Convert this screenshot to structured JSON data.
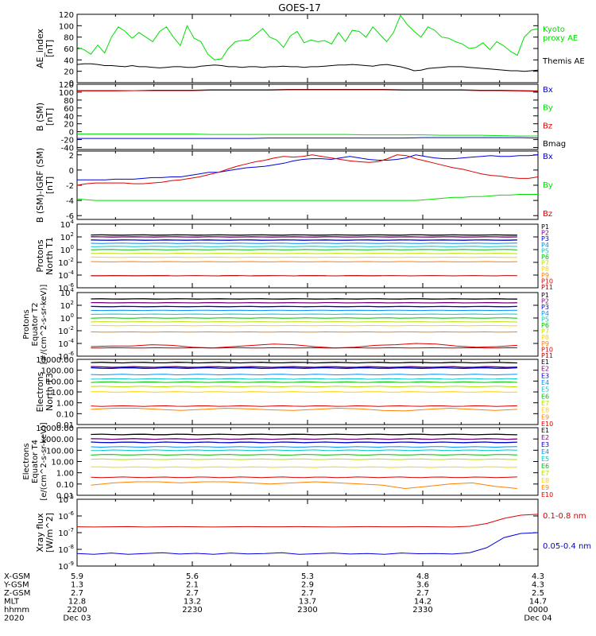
{
  "title": "GOES-17",
  "colors": {
    "axis": "#000000",
    "black": "#000000",
    "green": "#00e000",
    "blue": "#0000dd",
    "red": "#dd0000",
    "p_channels": [
      "#000000",
      "#7a007a",
      "#0000cc",
      "#0090ff",
      "#00c8c8",
      "#00c000",
      "#b8e000",
      "#ffd000",
      "#ff8000",
      "#dd0000",
      "#b00000"
    ],
    "e_channels": [
      "#000000",
      "#7a007a",
      "#0000cc",
      "#0090ff",
      "#00c8c8",
      "#00c000",
      "#b8e000",
      "#ffd000",
      "#ff8000",
      "#dd0000"
    ]
  },
  "chart_data": [
    {
      "id": "ae",
      "type": "line",
      "ylabel": "AE_index\n[nT]",
      "ylim": [
        0,
        120
      ],
      "ticks": [
        "0",
        "20",
        "40",
        "60",
        "80",
        "100",
        "120"
      ],
      "tick_values": [
        0,
        20,
        40,
        60,
        80,
        100,
        120
      ],
      "legend": [
        {
          "label": "Kyoto\nproxy AE",
          "color": "green"
        },
        {
          "label": "Themis AE",
          "color": "black"
        }
      ],
      "series": [
        {
          "name": "Kyoto proxy AE",
          "color": "green",
          "values": [
            62,
            58,
            50,
            66,
            52,
            80,
            98,
            90,
            78,
            88,
            80,
            72,
            90,
            98,
            80,
            65,
            100,
            78,
            72,
            50,
            40,
            42,
            60,
            72,
            74,
            75,
            85,
            95,
            80,
            75,
            62,
            82,
            90,
            70,
            75,
            72,
            74,
            68,
            88,
            72,
            92,
            90,
            80,
            98,
            85,
            72,
            88,
            118,
            102,
            90,
            80,
            98,
            92,
            80,
            78,
            72,
            68,
            60,
            62,
            70,
            58,
            72,
            65,
            55,
            48,
            80,
            92,
            95
          ]
        },
        {
          "name": "Themis AE",
          "color": "black",
          "values": [
            32,
            33,
            33,
            32,
            30,
            30,
            29,
            28,
            30,
            28,
            28,
            27,
            26,
            27,
            28,
            28,
            27,
            27,
            29,
            30,
            31,
            30,
            28,
            28,
            27,
            28,
            28,
            27,
            28,
            28,
            29,
            28,
            28,
            27,
            28,
            28,
            29,
            30,
            31,
            31,
            32,
            31,
            30,
            29,
            31,
            32,
            30,
            28,
            25,
            21,
            22,
            25,
            26,
            27,
            28,
            28,
            28,
            27,
            26,
            25,
            24,
            23,
            22,
            21,
            21,
            20,
            21,
            22
          ]
        }
      ]
    },
    {
      "id": "bsm",
      "type": "line",
      "ylabel": "B (SM)\n[nT]",
      "ylim": [
        -45,
        120
      ],
      "ticks": [
        "-40",
        "-20",
        "0",
        "20",
        "40",
        "60",
        "80",
        "100",
        "120"
      ],
      "tick_values": [
        -40,
        -20,
        0,
        20,
        40,
        60,
        80,
        100,
        120
      ],
      "legend": [
        {
          "label": "Bx",
          "color": "blue"
        },
        {
          "label": "By",
          "color": "green"
        },
        {
          "label": "Bz",
          "color": "red"
        },
        {
          "label": "Bmag",
          "color": "black"
        }
      ],
      "series": [
        {
          "name": "Bx",
          "color": "blue",
          "values": [
            -17,
            -17,
            -17,
            -17,
            -17,
            -17,
            -17,
            -17,
            -17,
            -17,
            -16,
            -16,
            -16,
            -16,
            -16,
            -16,
            -16,
            -16,
            -15,
            -15,
            -15,
            -15,
            -15,
            -15,
            -16
          ]
        },
        {
          "name": "By",
          "color": "green",
          "values": [
            -6,
            -6,
            -6,
            -6,
            -6,
            -6,
            -6,
            -7,
            -7,
            -7,
            -7,
            -7,
            -7,
            -7,
            -7,
            -8,
            -8,
            -8,
            -8,
            -9,
            -9,
            -9,
            -10,
            -11,
            -11
          ]
        },
        {
          "name": "Bmag",
          "color": "black",
          "values": [
            104,
            104,
            104,
            104,
            105,
            105,
            105,
            106,
            106,
            106,
            106,
            107,
            107,
            107,
            107,
            107,
            107,
            106,
            106,
            106,
            106,
            105,
            105,
            104,
            103
          ]
        },
        {
          "name": "Bz",
          "color": "red",
          "values": [
            103,
            103,
            103,
            104,
            104,
            104,
            104,
            105,
            105,
            105,
            105,
            106,
            106,
            106,
            106,
            106,
            106,
            105,
            105,
            105,
            105,
            104,
            104,
            103,
            102
          ]
        }
      ]
    },
    {
      "id": "bdiff",
      "type": "line",
      "ylabel": "B (SM)-IGRF (SM)\n[nT]",
      "ylim": [
        -6.5,
        2.5
      ],
      "ticks": [
        "-6",
        "-4",
        "-2",
        "0",
        "2"
      ],
      "tick_values": [
        -6,
        -4,
        -2,
        0,
        2
      ],
      "legend": [
        {
          "label": "Bx",
          "color": "blue"
        },
        {
          "label": "By",
          "color": "green"
        },
        {
          "label": "Bz",
          "color": "red"
        }
      ],
      "series": [
        {
          "name": "Bx",
          "color": "blue",
          "values": [
            -1.3,
            -1.3,
            -1.3,
            -1.3,
            -1.2,
            -1.2,
            -1.2,
            -1.1,
            -1.0,
            -1.0,
            -0.9,
            -0.9,
            -0.7,
            -0.5,
            -0.3,
            -0.3,
            -0.1,
            0.1,
            0.3,
            0.4,
            0.5,
            0.7,
            0.9,
            1.2,
            1.4,
            1.5,
            1.5,
            1.4,
            1.6,
            1.8,
            1.6,
            1.4,
            1.3,
            1.3,
            1.4,
            1.6,
            2.0,
            1.8,
            1.6,
            1.5,
            1.5,
            1.6,
            1.7,
            1.8,
            1.9,
            1.8,
            1.8,
            1.9,
            1.9,
            2.0
          ]
        },
        {
          "name": "By",
          "color": "green",
          "values": [
            -3.8,
            -3.9,
            -4.0,
            -4.0,
            -4.0,
            -4.0,
            -4.0,
            -4.0,
            -4.0,
            -4.0,
            -4.0,
            -4.0,
            -4.0,
            -4.0,
            -4.0,
            -4.0,
            -4.0,
            -4.0,
            -4.0,
            -4.0,
            -4.0,
            -4.0,
            -4.0,
            -4.0,
            -4.0,
            -4.0,
            -4.0,
            -4.0,
            -4.0,
            -4.0,
            -4.0,
            -4.0,
            -4.0,
            -4.0,
            -4.0,
            -4.0,
            -4.0,
            -3.9,
            -3.8,
            -3.7,
            -3.6,
            -3.6,
            -3.5,
            -3.5,
            -3.4,
            -3.3,
            -3.3,
            -3.2,
            -3.2,
            -3.2
          ]
        },
        {
          "name": "Bz",
          "color": "red",
          "values": [
            -2.0,
            -1.8,
            -1.7,
            -1.7,
            -1.7,
            -1.7,
            -1.8,
            -1.8,
            -1.7,
            -1.6,
            -1.4,
            -1.3,
            -1.1,
            -0.9,
            -0.6,
            -0.3,
            0.1,
            0.5,
            0.8,
            1.1,
            1.3,
            1.6,
            1.8,
            1.7,
            1.8,
            2.0,
            1.8,
            1.6,
            1.4,
            1.2,
            1.1,
            1.0,
            1.1,
            1.5,
            2.0,
            1.9,
            1.5,
            1.2,
            0.9,
            0.6,
            0.3,
            0.1,
            -0.2,
            -0.5,
            -0.7,
            -0.8,
            -1.0,
            -1.1,
            -1.1,
            -0.9
          ]
        }
      ]
    },
    {
      "id": "p_t1",
      "type": "line",
      "log": true,
      "ylabel": "Protons\nNorth T1",
      "ylim": [
        -6,
        4
      ],
      "ticks": [
        "10^-6",
        "10^-4",
        "10^-2",
        "10^0",
        "10^2",
        "10^4"
      ],
      "tick_values": [
        -6,
        -4,
        -2,
        0,
        2,
        4
      ],
      "legend": [
        "P1",
        "P2",
        "P3",
        "P4",
        "P5",
        "P6",
        "P7",
        "P8",
        "P9",
        "P10",
        "P11"
      ],
      "channel_levels": [
        2.3,
        2.0,
        1.5,
        1.0,
        0.5,
        0.0,
        -0.6,
        -1.2,
        -1.9,
        -2.6,
        -4.1
      ],
      "p10_segments": [
        [
          0.03,
          0.2,
          -4.1
        ],
        [
          0.31,
          0.35,
          -4.1
        ],
        [
          0.38,
          0.42,
          -4.1
        ],
        [
          0.48,
          0.54,
          -4.1
        ],
        [
          0.58,
          0.66,
          -4.1
        ]
      ]
    },
    {
      "id": "p_t2",
      "type": "line",
      "log": true,
      "ylabel": "Protons\nEquator T2\n[#/(cm^2-s-sr-keV)]",
      "ylim": [
        -6,
        4
      ],
      "ticks": [
        "10^-6",
        "10^-4",
        "10^-2",
        "10^0",
        "10^2",
        "10^4"
      ],
      "tick_values": [
        -6,
        -4,
        -2,
        0,
        2,
        4
      ],
      "legend": [
        "P1",
        "P2",
        "P3",
        "P4",
        "P5",
        "P6",
        "P7",
        "P8",
        "P9",
        "P10",
        "P11"
      ],
      "channel_levels": [
        3.0,
        2.4,
        1.8,
        1.2,
        0.6,
        0.0,
        -0.6,
        -1.2,
        -2.2,
        -3.0,
        -4.7
      ],
      "p10_wave": [
        -4.5,
        -4.4,
        -4.4,
        -4.2,
        -4.3,
        -4.6,
        -4.7,
        -4.5,
        -4.3,
        -4.1,
        -4.2,
        -4.5,
        -4.7,
        -4.6,
        -4.3,
        -4.2,
        -4.0,
        -4.1,
        -4.4,
        -4.6,
        -4.5,
        -4.3
      ]
    },
    {
      "id": "e_t3",
      "type": "line",
      "log": true,
      "ylabel": "Electrons\nNorth T3",
      "ylim": [
        -2,
        4
      ],
      "ticks": [
        "0.01",
        "0.10",
        "1.00",
        "10.00",
        "100.00",
        "1000.00",
        "10000.00"
      ],
      "tick_values": [
        -2,
        -1,
        0,
        1,
        2,
        3,
        4
      ],
      "legend": [
        "E1",
        "E2",
        "E3",
        "E4",
        "E5",
        "E6",
        "E7",
        "E8",
        "E9",
        "E10"
      ],
      "channel_levels": [
        3.7,
        3.3,
        3.2,
        2.6,
        2.2,
        1.9,
        1.5,
        1.0,
        0.2,
        -0.3
      ],
      "e9_wave": [
        -0.6,
        -0.5,
        -0.5,
        -0.6,
        -0.7,
        -0.6,
        -0.5,
        -0.55,
        -0.65,
        -0.7,
        -0.6,
        -0.5,
        -0.55,
        -0.7,
        -0.75,
        -0.6,
        -0.5,
        -0.6,
        -0.7,
        -0.6
      ]
    },
    {
      "id": "e_t4",
      "type": "line",
      "log": true,
      "ylabel": "Electrons\nEquator T4\n[e/(cm^2-s-sr-keV)]",
      "ylim": [
        -2,
        4
      ],
      "ticks": [
        "0.01",
        "0.10",
        "1.00",
        "10.00",
        "100.00",
        "1000.00",
        "10000.00"
      ],
      "tick_values": [
        -2,
        -1,
        0,
        1,
        2,
        3,
        4
      ],
      "legend": [
        "E1",
        "E2",
        "E3",
        "E4",
        "E5",
        "E6",
        "E7",
        "E8",
        "E9",
        "E10"
      ],
      "channel_levels": [
        3.4,
        3.0,
        2.7,
        2.3,
        2.0,
        1.6,
        1.2,
        0.5,
        0.0,
        -0.4
      ],
      "e9_wave": [
        -1.1,
        -0.9,
        -0.8,
        -0.8,
        -0.9,
        -0.8,
        -0.8,
        -0.9,
        -1.0,
        -0.9,
        -0.8,
        -0.9,
        -1.0,
        -1.1,
        -1.4,
        -1.2,
        -1.0,
        -0.9,
        -1.2,
        -1.4
      ]
    },
    {
      "id": "xray",
      "type": "line",
      "log": true,
      "ylabel": "Xray flux\n[W/m^2]",
      "ylim": [
        -9,
        -5
      ],
      "ticks": [
        "10^-9",
        "10^-8",
        "10^-7",
        "10^-6",
        "10^-5"
      ],
      "tick_values": [
        -9,
        -8,
        -7,
        -6,
        -5
      ],
      "legend": [
        {
          "label": "0.1-0.8 nm",
          "color": "red"
        },
        {
          "label": "0.05-0.4 nm",
          "color": "blue"
        }
      ],
      "series": [
        {
          "name": "0.1-0.8 nm",
          "color": "red",
          "values": [
            -6.65,
            -6.66,
            -6.65,
            -6.64,
            -6.66,
            -6.65,
            -6.64,
            -6.65,
            -6.66,
            -6.65,
            -6.64,
            -6.65,
            -6.65,
            -6.64,
            -6.65,
            -6.66,
            -6.65,
            -6.64,
            -6.65,
            -6.65,
            -6.64,
            -6.65,
            -6.66,
            -6.62,
            -6.45,
            -6.15,
            -5.95,
            -5.9
          ]
        },
        {
          "name": "0.05-0.4 nm",
          "color": "blue",
          "values": [
            -8.25,
            -8.3,
            -8.22,
            -8.3,
            -8.25,
            -8.2,
            -8.28,
            -8.24,
            -8.3,
            -8.22,
            -8.27,
            -8.25,
            -8.2,
            -8.3,
            -8.26,
            -8.22,
            -8.28,
            -8.25,
            -8.3,
            -8.22,
            -8.26,
            -8.25,
            -8.28,
            -8.2,
            -7.9,
            -7.3,
            -7.05,
            -7.0
          ]
        }
      ]
    }
  ],
  "footer": {
    "row_labels": [
      "X-GSM",
      "Y-GSM",
      "Z-GSM",
      "MLT",
      "hhmm",
      "2020"
    ],
    "columns": [
      {
        "values": [
          "5.9",
          "1.3",
          "2.7",
          "12.8",
          "2200",
          "Dec 03"
        ]
      },
      {
        "values": [
          "5.6",
          "2.1",
          "2.7",
          "13.2",
          "2230",
          ""
        ]
      },
      {
        "values": [
          "5.3",
          "2.9",
          "2.7",
          "13.7",
          "2300",
          ""
        ]
      },
      {
        "values": [
          "4.8",
          "3.6",
          "2.7",
          "14.2",
          "2330",
          ""
        ]
      },
      {
        "values": [
          "4.3",
          "4.3",
          "2.5",
          "14.7",
          "0000",
          "Dec 04"
        ]
      }
    ]
  }
}
